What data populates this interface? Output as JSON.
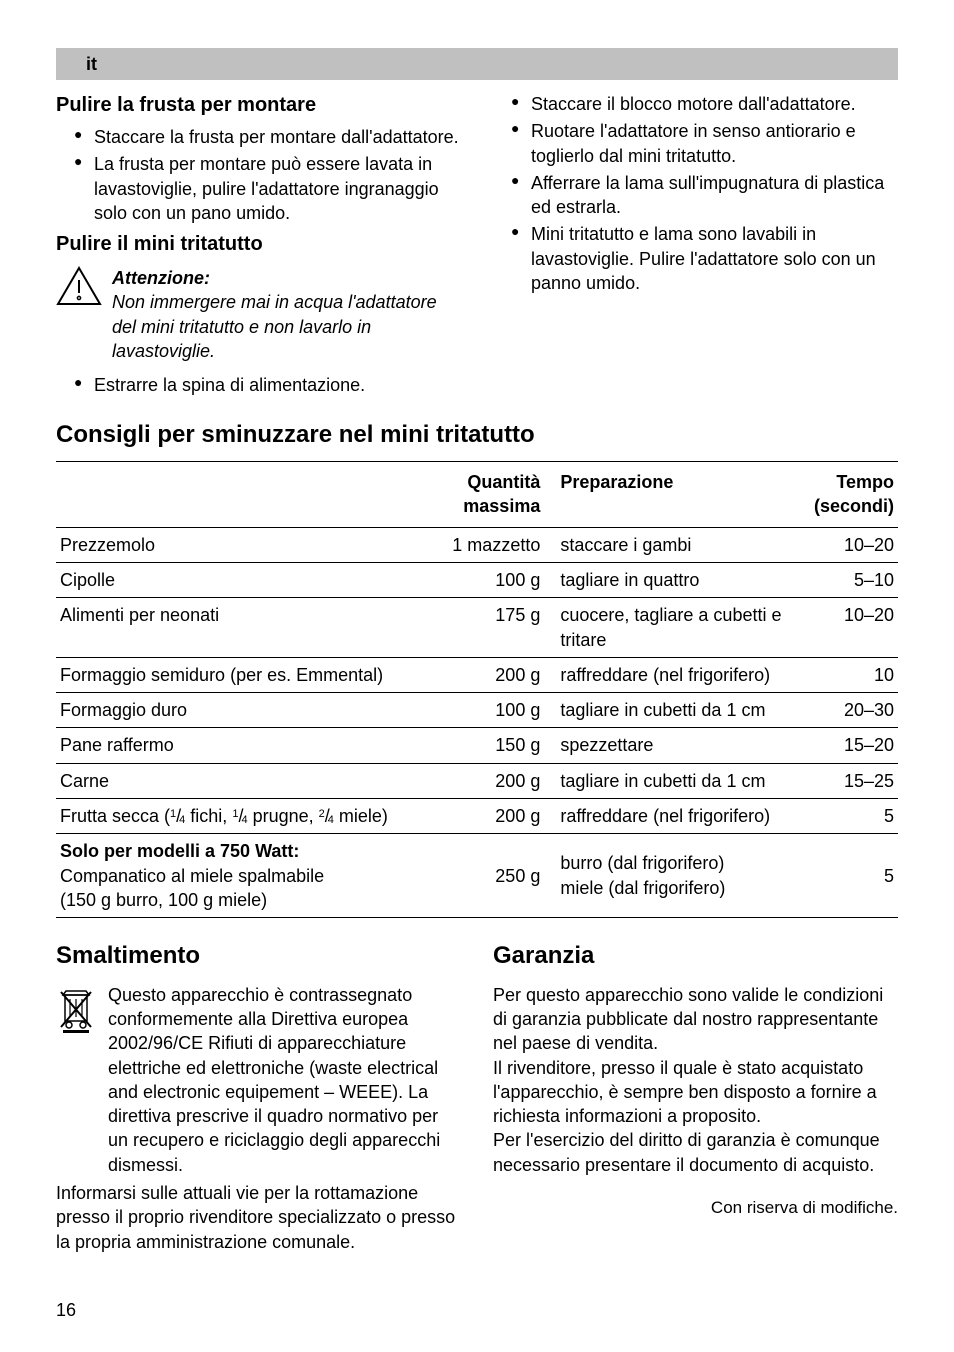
{
  "lang_code": "it",
  "left": {
    "h1": "Pulire la frusta per montare",
    "b1": [
      "Staccare la frusta per montare dall'adattatore.",
      "La frusta per montare può essere lavata in lavastoviglie, pulire l'adattatore ingranaggio solo con un pano umido."
    ],
    "h2": "Pulire il mini tritatutto",
    "att_title": "Attenzione:",
    "att_body": "Non immergere mai in acqua l'adattatore del mini tritatutto e non lavarlo in lavastoviglie.",
    "b2": [
      "Estrarre la spina di alimentazione."
    ]
  },
  "right": {
    "b1": [
      "Staccare il blocco motore dall'adattatore.",
      "Ruotare l'adattatore in senso antiorario e toglierlo dal mini tritatutto.",
      "Afferrare la lama sull'impugnatura di plastica ed estrarla.",
      "Mini tritatutto e lama sono lavabili in lavastoviglie. Pulire l'adattatore solo con un panno umido."
    ]
  },
  "table_title": "Consigli per sminuzzare nel mini tritatutto",
  "table": {
    "headers": {
      "item": "",
      "qty": "Quantità massima",
      "prep": "Preparazione",
      "time": "Tempo (secondi)"
    },
    "rows": [
      {
        "item": "Prezzemolo",
        "qty": "1 mazzetto",
        "prep": "staccare i gambi",
        "time": "10–20"
      },
      {
        "item": "Cipolle",
        "qty": "100 g",
        "prep": "tagliare in quattro",
        "time": "5–10"
      },
      {
        "item": "Alimenti per neonati",
        "qty": "175 g",
        "prep": "cuocere, tagliare a cubetti e tritare",
        "time": "10–20"
      },
      {
        "item": "Formaggio semiduro (per es. Emmental)",
        "qty": "200 g",
        "prep": "raffreddare (nel frigorifero)",
        "time": "10"
      },
      {
        "item": "Formaggio duro",
        "qty": "100 g",
        "prep": "tagliare in cubetti da 1 cm",
        "time": "20–30"
      },
      {
        "item": "Pane raffermo",
        "qty": "150 g",
        "prep": "spezzettare",
        "time": "15–20"
      },
      {
        "item": "Carne",
        "qty": "200 g",
        "prep": "tagliare in cubetti da 1 cm",
        "time": "15–25"
      },
      {
        "item_html": "Frutta secca (<span class='frac'><sup>1</sup>/<sub>4</sub></span> fichi, <span class='frac'><sup>1</sup>/<sub>4</sub></span> prugne, <span class='frac'><sup>2</sup>/<sub>4</sub></span> miele)",
        "qty": "200 g",
        "prep": "raffreddare (nel frigorifero)",
        "time": "5"
      },
      {
        "item_html": "<span class='bold'>Solo per modelli a 750 Watt:</span><br>Companatico al miele spalmabile<br>(150 g burro, 100 g miele)",
        "qty": "250 g",
        "prep": "burro (dal frigorifero)<br>miele (dal frigorifero)",
        "time": "5"
      }
    ]
  },
  "disposal": {
    "title": "Smaltimento",
    "p1": "Questo apparecchio è contrassegnato conformemente alla Direttiva europea 2002/96/CE Rifiuti di apparecchiature elettriche ed elettroniche (waste electrical and electronic equipement – WEEE). La direttiva prescrive il quadro normativo per un recupero e riciclaggio degli apparecchi dismessi.",
    "p2": "Informarsi sulle attuali vie per la rottamazione presso il proprio rivenditore specializzato o presso la propria amministrazione comunale."
  },
  "warranty": {
    "title": "Garanzia",
    "p1": "Per questo apparecchio sono valide le condizioni di garanzia pubblicate dal nostro rappresentante nel paese di vendita.",
    "p2": "Il rivenditore, presso il quale è stato acquistato l'apparecchio, è sempre ben disposto a fornire a richiesta informazioni a proposito.",
    "p3": "Per l'esercizio del diritto di garanzia è comunque necessario presentare il documento di acquisto."
  },
  "footer": "Con riserva di modifiche.",
  "page": "16",
  "colors": {
    "bg": "#ffffff",
    "text": "#000000",
    "bar": "#c0c0c0",
    "rule": "#000000"
  }
}
